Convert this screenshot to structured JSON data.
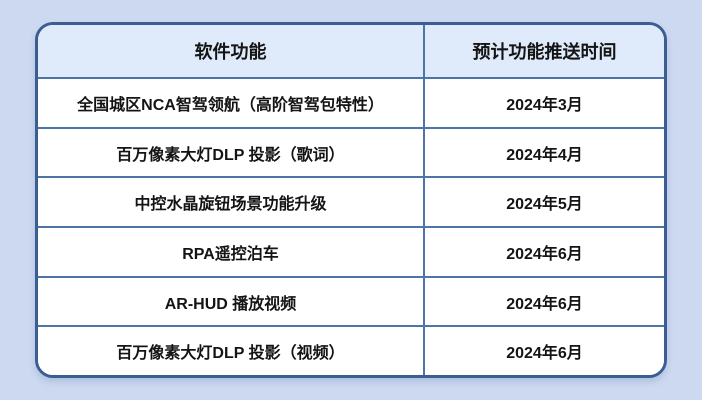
{
  "chart_data": {
    "type": "table",
    "columns": [
      "软件功能",
      "预计功能推送时间"
    ],
    "rows": [
      [
        "全国城区NCA智驾领航（高阶智驾包特性）",
        "2024年3月"
      ],
      [
        "百万像素大灯DLP 投影（歌词）",
        "2024年4月"
      ],
      [
        "中控水晶旋钮场景功能升级",
        "2024年5月"
      ],
      [
        "RPA遥控泊车",
        "2024年6月"
      ],
      [
        "AR-HUD 播放视频",
        "2024年6月"
      ],
      [
        "百万像素大灯DLP 投影（视频）",
        "2024年6月"
      ]
    ],
    "title": "",
    "legend": "none",
    "grid": "on"
  },
  "colors": {
    "page_bg": "#cdd9f1",
    "header_bg": "#dfeafa",
    "cell_bg": "#ffffff",
    "border": "#3b5e91",
    "grid": "#4d74a6",
    "text": "#141414"
  }
}
